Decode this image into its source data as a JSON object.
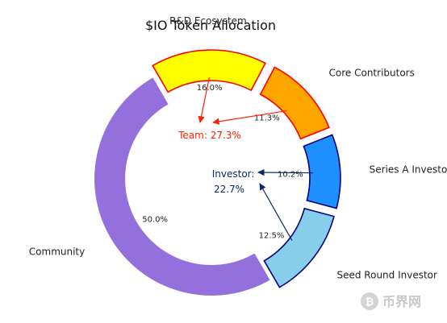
{
  "chart_data": {
    "type": "pie",
    "title": "$IO Token Allocation",
    "categories": [
      "R&D Ecosystem",
      "Core Contributors",
      "Series A Investor",
      "Seed Round Investor",
      "Community"
    ],
    "values": [
      16.0,
      11.3,
      10.2,
      12.5,
      50.0
    ],
    "value_labels": [
      "16.0%",
      "11.3%",
      "10.2%",
      "12.5%",
      "50.0%"
    ],
    "colors": [
      "#ffff00",
      "#ffa500",
      "#1e90ff",
      "#87ceeb",
      "#9370db"
    ],
    "edge_colors": [
      "#ff0000",
      "#ff0000",
      "#000080",
      "#000080",
      "#9370db"
    ],
    "exploded": [
      true,
      true,
      true,
      true,
      false
    ],
    "donut": true,
    "annotations": [
      {
        "text": "Team: 27.3%",
        "color": "#ff2200",
        "targets": [
          "R&D Ecosystem",
          "Core Contributors"
        ]
      },
      {
        "text_lines": [
          "Investor:",
          "22.7%"
        ],
        "color": "#0a2a6b",
        "targets": [
          "Series A Investor",
          "Seed Round Investor"
        ]
      }
    ]
  },
  "watermark": {
    "text": "币界网",
    "icon": "bitcoin-circle-icon"
  }
}
